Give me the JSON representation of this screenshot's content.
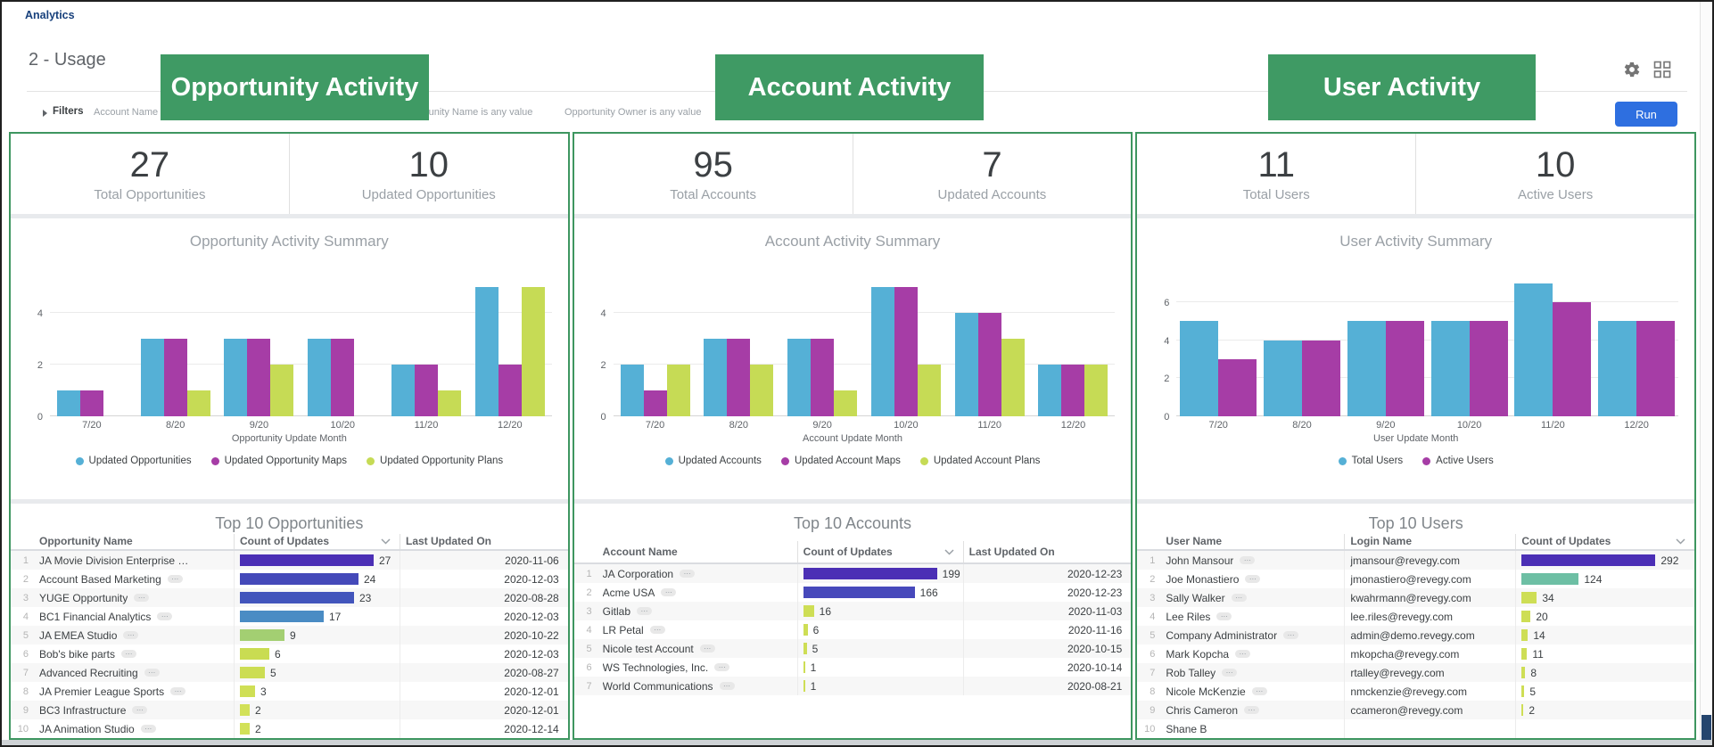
{
  "header": {
    "app_title": "Analytics",
    "dashboard_title": "2 - Usage",
    "run_label": "Run",
    "filters_label": "Filters",
    "filters": [
      "Account Name is any value",
      "Opportunity Name is any value",
      "Opportunity Owner is any value"
    ],
    "accent_blue": "#2e6fe0"
  },
  "annotations": [
    {
      "label": "Opportunity Activity",
      "color": "#3F9A64"
    },
    {
      "label": "Account Activity",
      "color": "#3F9A64"
    },
    {
      "label": "User Activity",
      "color": "#3F9A64"
    }
  ],
  "colors": {
    "panel_border_green": "#3E9660",
    "series_blue": "#55B0D6",
    "series_magenta": "#A63DA6",
    "series_green": "#C6DB55",
    "scrollbar_thumb": "#25456e"
  },
  "panels": [
    {
      "slug": "opportunity-activity",
      "tiles": [
        {
          "value": "27",
          "label": "Total Opportunities"
        },
        {
          "value": "10",
          "label": "Updated Opportunities"
        }
      ],
      "chart_data": {
        "type": "bar",
        "title": "Opportunity Activity Summary",
        "xlabel": "Opportunity Update Month",
        "categories": [
          "7/20",
          "8/20",
          "9/20",
          "10/20",
          "11/20",
          "12/20"
        ],
        "series": [
          {
            "name": "Updated Opportunities",
            "color": "#55B0D6",
            "values": [
              1,
              3,
              3,
              3,
              2,
              5
            ]
          },
          {
            "name": "Updated Opportunity Maps",
            "color": "#A63DA6",
            "values": [
              1,
              3,
              3,
              3,
              2,
              2
            ]
          },
          {
            "name": "Updated Opportunity Plans",
            "color": "#C6DB55",
            "values": [
              0,
              1,
              2,
              0,
              1,
              5
            ]
          }
        ],
        "yticks": [
          0,
          2,
          4
        ],
        "ylim": [
          0,
          5.5
        ],
        "grid": true,
        "legend_position": "bottom"
      },
      "table": {
        "title": "Top 10 Opportunities",
        "type": "count-date",
        "columns": [
          "",
          "Opportunity Name",
          "Count of Updates",
          "Last Updated On"
        ],
        "rows": [
          {
            "num": "1",
            "name": "JA Movie Division Enterprise …",
            "pill": false,
            "count": 27,
            "date": "2020-11-06",
            "bar_color": "#4B2FB5"
          },
          {
            "num": "2",
            "name": "Account Based Marketing",
            "pill": true,
            "count": 24,
            "date": "2020-12-03",
            "bar_color": "#4449B9"
          },
          {
            "num": "3",
            "name": "YUGE Opportunity",
            "pill": true,
            "count": 23,
            "date": "2020-08-28",
            "bar_color": "#4255BC"
          },
          {
            "num": "4",
            "name": "BC1 Financial Analytics",
            "pill": true,
            "count": 17,
            "date": "2020-12-03",
            "bar_color": "#4A8CC4"
          },
          {
            "num": "5",
            "name": "JA EMEA Studio",
            "pill": true,
            "count": 9,
            "date": "2020-10-22",
            "bar_color": "#A3CF72"
          },
          {
            "num": "6",
            "name": "Bob's bike parts",
            "pill": true,
            "count": 6,
            "date": "2020-12-03",
            "bar_color": "#C9DC52"
          },
          {
            "num": "7",
            "name": "Advanced Recruiting",
            "pill": true,
            "count": 5,
            "date": "2020-08-27",
            "bar_color": "#CCDD53"
          },
          {
            "num": "8",
            "name": "JA Premier League Sports",
            "pill": true,
            "count": 3,
            "date": "2020-12-01",
            "bar_color": "#CFDF55"
          },
          {
            "num": "9",
            "name": "BC3 Infrastructure",
            "pill": true,
            "count": 2,
            "date": "2020-12-01",
            "bar_color": "#D2E158"
          },
          {
            "num": "10",
            "name": "JA Animation Studio",
            "pill": true,
            "count": 2,
            "date": "2020-12-14",
            "bar_color": "#D2E158"
          }
        ]
      }
    },
    {
      "slug": "account-activity",
      "tiles": [
        {
          "value": "95",
          "label": "Total Accounts"
        },
        {
          "value": "7",
          "label": "Updated Accounts"
        }
      ],
      "chart_data": {
        "type": "bar",
        "title": "Account Activity Summary",
        "xlabel": "Account Update Month",
        "categories": [
          "7/20",
          "8/20",
          "9/20",
          "10/20",
          "11/20",
          "12/20"
        ],
        "series": [
          {
            "name": "Updated Accounts",
            "color": "#55B0D6",
            "values": [
              2,
              3,
              3,
              5,
              4,
              2
            ]
          },
          {
            "name": "Updated Account Maps",
            "color": "#A63DA6",
            "values": [
              1,
              3,
              3,
              5,
              4,
              2
            ]
          },
          {
            "name": "Updated Account Plans",
            "color": "#C6DB55",
            "values": [
              2,
              2,
              1,
              2,
              3,
              2
            ]
          }
        ],
        "yticks": [
          0,
          2,
          4
        ],
        "ylim": [
          0,
          5.5
        ],
        "grid": true,
        "legend_position": "bottom"
      },
      "table": {
        "title": "Top 10 Accounts",
        "type": "count-date",
        "columns": [
          "",
          "Account Name",
          "Count of Updates",
          "Last Updated On"
        ],
        "rows": [
          {
            "num": "1",
            "name": "JA Corporation",
            "pill": true,
            "count": 199,
            "date": "2020-12-23",
            "bar_color": "#4B2FB5"
          },
          {
            "num": "2",
            "name": "Acme USA",
            "pill": true,
            "count": 166,
            "date": "2020-12-23",
            "bar_color": "#4749BB"
          },
          {
            "num": "3",
            "name": "Gitlab",
            "pill": true,
            "count": 16,
            "date": "2020-11-03",
            "bar_color": "#CEDE55"
          },
          {
            "num": "4",
            "name": "LR Petal",
            "pill": true,
            "count": 6,
            "date": "2020-11-16",
            "bar_color": "#CEDE55"
          },
          {
            "num": "5",
            "name": "Nicole test Account",
            "pill": true,
            "count": 5,
            "date": "2020-10-15",
            "bar_color": "#CEDE55"
          },
          {
            "num": "6",
            "name": "WS Technologies, Inc.",
            "pill": true,
            "count": 1,
            "date": "2020-10-14",
            "bar_color": "#CEDE55"
          },
          {
            "num": "7",
            "name": "World Communications",
            "pill": true,
            "count": 1,
            "date": "2020-08-21",
            "bar_color": "#CEDE55"
          }
        ]
      }
    },
    {
      "slug": "user-activity",
      "tiles": [
        {
          "value": "11",
          "label": "Total Users"
        },
        {
          "value": "10",
          "label": "Active Users"
        }
      ],
      "chart_data": {
        "type": "bar",
        "title": "User Activity Summary",
        "xlabel": "User Update Month",
        "categories": [
          "7/20",
          "8/20",
          "9/20",
          "10/20",
          "11/20",
          "12/20"
        ],
        "series": [
          {
            "name": "Total Users",
            "color": "#55B0D6",
            "values": [
              5,
              4,
              5,
              5,
              7,
              5
            ]
          },
          {
            "name": "Active Users",
            "color": "#A63DA6",
            "values": [
              3,
              4,
              5,
              5,
              6,
              5
            ]
          }
        ],
        "yticks": [
          0,
          2,
          4,
          6
        ],
        "ylim": [
          0,
          7.5
        ],
        "grid": true,
        "legend_position": "bottom"
      },
      "table": {
        "title": "Top 10 Users",
        "type": "login-count",
        "columns": [
          "",
          "User Name",
          "Login Name",
          "Count of Updates"
        ],
        "rows": [
          {
            "num": "1",
            "name": "John Mansour",
            "pill": true,
            "login": "jmansour@revegy.com",
            "count": 292,
            "bar_color": "#4B2FB5"
          },
          {
            "num": "2",
            "name": "Joe Monastiero",
            "pill": true,
            "login": "jmonastiero@revegy.com",
            "count": 124,
            "bar_color": "#6DBFA4"
          },
          {
            "num": "3",
            "name": "Sally Walker",
            "pill": true,
            "login": "kwahrmann@revegy.com",
            "count": 34,
            "bar_color": "#CEDE55"
          },
          {
            "num": "4",
            "name": "Lee Riles",
            "pill": true,
            "login": "lee.riles@revegy.com",
            "count": 20,
            "bar_color": "#CEDE55"
          },
          {
            "num": "5",
            "name": "Company Administrator",
            "pill": true,
            "login": "admin@demo.revegy.com",
            "count": 14,
            "bar_color": "#CEDE55"
          },
          {
            "num": "6",
            "name": "Mark Kopcha",
            "pill": true,
            "login": "mkopcha@revegy.com",
            "count": 11,
            "bar_color": "#CEDE55"
          },
          {
            "num": "7",
            "name": "Rob Talley",
            "pill": true,
            "login": "rtalley@revegy.com",
            "count": 8,
            "bar_color": "#CEDE55"
          },
          {
            "num": "8",
            "name": "Nicole McKenzie",
            "pill": true,
            "login": "nmckenzie@revegy.com",
            "count": 5,
            "bar_color": "#CEDE55"
          },
          {
            "num": "9",
            "name": "Chris Cameron",
            "pill": true,
            "login": "ccameron@revegy.com",
            "count": 2,
            "bar_color": "#CEDE55"
          },
          {
            "num": "10",
            "name": "Shane B",
            "pill": false,
            "login": "",
            "count": "",
            "bar_color": ""
          }
        ]
      }
    }
  ]
}
